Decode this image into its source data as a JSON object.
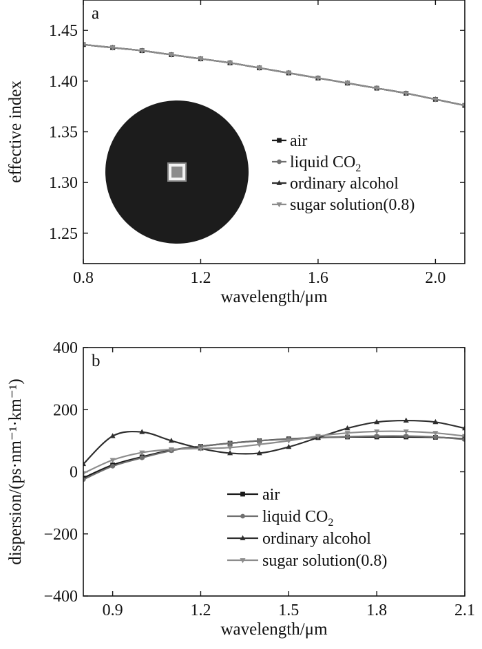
{
  "colors": {
    "air": "#1a1a1a",
    "liquid_co2": "#707070",
    "ordinary_alcohol": "#2e2e2e",
    "sugar_solution": "#8c8c8c",
    "inset_disk": "#1c1c1c",
    "inset_core": "#f2f2f2"
  },
  "chart_data": [
    {
      "type": "line",
      "panel_label": "a",
      "xlabel": "wavelength/μm",
      "ylabel": "effective index",
      "xlim": [
        0.8,
        2.1
      ],
      "ylim": [
        1.22,
        1.48
      ],
      "xticks": [
        0.8,
        1.2,
        1.6,
        2.0
      ],
      "xtick_labels": [
        "0.8",
        "1.2",
        "1.6",
        "2.0"
      ],
      "yticks": [
        1.25,
        1.3,
        1.35,
        1.4,
        1.45
      ],
      "ytick_labels": [
        "1.25",
        "1.30",
        "1.35",
        "1.40",
        "1.45"
      ],
      "legend_position": "right",
      "inset": "fiber cross-section mode profile (dark disk with bright square core)",
      "x": [
        0.8,
        0.9,
        1.0,
        1.1,
        1.2,
        1.3,
        1.4,
        1.5,
        1.6,
        1.7,
        1.8,
        1.9,
        2.0,
        2.1
      ],
      "series": [
        {
          "name": "air",
          "marker": "square",
          "values": [
            1.436,
            1.433,
            1.43,
            1.426,
            1.422,
            1.418,
            1.413,
            1.408,
            1.403,
            1.398,
            1.393,
            1.388,
            1.382,
            1.376
          ]
        },
        {
          "name": "liquid CO",
          "name_sub": "2",
          "marker": "circle",
          "values": [
            1.436,
            1.433,
            1.43,
            1.426,
            1.422,
            1.418,
            1.413,
            1.408,
            1.403,
            1.398,
            1.393,
            1.388,
            1.382,
            1.376
          ]
        },
        {
          "name": "ordinary alcohol",
          "marker": "triangle-up",
          "values": [
            1.436,
            1.433,
            1.43,
            1.426,
            1.422,
            1.418,
            1.413,
            1.408,
            1.403,
            1.398,
            1.393,
            1.388,
            1.382,
            1.376
          ]
        },
        {
          "name": "sugar solution(0.8)",
          "marker": "triangle-down",
          "values": [
            1.436,
            1.433,
            1.43,
            1.426,
            1.422,
            1.418,
            1.413,
            1.408,
            1.403,
            1.398,
            1.393,
            1.388,
            1.382,
            1.376
          ]
        }
      ]
    },
    {
      "type": "line",
      "panel_label": "b",
      "xlabel": "wavelength/μm",
      "ylabel": "dispersion/(ps·nm⁻¹·km⁻¹)",
      "xlim": [
        0.8,
        2.1
      ],
      "ylim": [
        -400,
        400
      ],
      "xticks": [
        0.9,
        1.2,
        1.5,
        1.8,
        2.1
      ],
      "xtick_labels": [
        "0.9",
        "1.2",
        "1.5",
        "1.8",
        "2.1"
      ],
      "yticks": [
        -400,
        -200,
        0,
        200,
        400
      ],
      "ytick_labels": [
        "−400",
        "−200",
        "0",
        "200",
        "400"
      ],
      "legend_position": "lower-right",
      "x": [
        0.8,
        0.9,
        1.0,
        1.1,
        1.2,
        1.3,
        1.4,
        1.5,
        1.6,
        1.7,
        1.8,
        1.9,
        2.0,
        2.1
      ],
      "series": [
        {
          "name": "air",
          "marker": "square",
          "values": [
            -20,
            22,
            48,
            70,
            82,
            92,
            100,
            106,
            110,
            112,
            112,
            112,
            111,
            106
          ]
        },
        {
          "name": "liquid CO",
          "name_sub": "2",
          "marker": "circle",
          "values": [
            -25,
            18,
            45,
            68,
            82,
            92,
            100,
            105,
            110,
            113,
            115,
            115,
            112,
            104
          ]
        },
        {
          "name": "ordinary alcohol",
          "marker": "triangle-up",
          "values": [
            25,
            115,
            128,
            100,
            75,
            60,
            60,
            80,
            110,
            140,
            160,
            165,
            160,
            140
          ]
        },
        {
          "name": "sugar solution(0.8)",
          "marker": "triangle-down",
          "values": [
            -5,
            38,
            62,
            72,
            75,
            78,
            88,
            100,
            115,
            125,
            130,
            130,
            125,
            115
          ]
        }
      ]
    }
  ]
}
